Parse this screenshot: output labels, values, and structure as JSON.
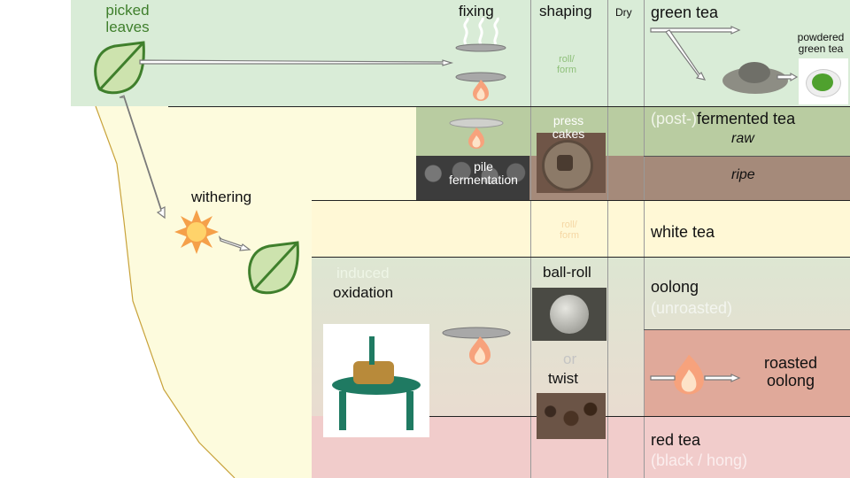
{
  "colors": {
    "green_band": "#d9ecd7",
    "cream_band": "#fdfbdd",
    "olive_band": "#b9cca1",
    "brown_band": "#a58a7a",
    "white_tea_band": "#fff8d6",
    "oolong_band": "#dde6d2",
    "roasted_band": "#e0a99a",
    "red_band": "#f1cccb",
    "leaf_fill": "#cde3ae",
    "leaf_stroke": "#3f7f2c",
    "muted_text_light": "#e8f2e0",
    "flame": "#f7a27c"
  },
  "icons": {
    "leaf": "leaf-icon",
    "sun": "sun-icon",
    "flame": "flame-icon",
    "steam": "steam-icon",
    "pan": "pan-icon",
    "arrow": "arrow-icon"
  },
  "labels": {
    "picked_leaves_1": "picked",
    "picked_leaves_2": "leaves",
    "withering": "withering",
    "fixing": "fixing",
    "shaping": "shaping",
    "dry": "Dry",
    "roll_form_green_1": "roll/",
    "roll_form_green_2": "form",
    "roll_form_white_1": "roll/",
    "roll_form_white_2": "form",
    "press_cakes_1": "press",
    "press_cakes_2": "cakes",
    "pile_fermentation_1": "pile",
    "pile_fermentation_2": "fermentation",
    "induced": "induced",
    "oxidation": "oxidation",
    "ball_roll": "ball-roll",
    "or": "or",
    "twist": "twist"
  },
  "teas": {
    "green": "green tea",
    "powdered_1": "powdered",
    "powdered_2": "green tea",
    "fermented_prefix": "(post-)",
    "fermented_main": "fermented tea",
    "raw": "raw",
    "ripe": "ripe",
    "white": "white tea",
    "oolong": "oolong",
    "unroasted": "(unroasted)",
    "roasted_1": "roasted",
    "roasted_2": "oolong",
    "red": "red tea",
    "red_alt": "(black / hong)"
  }
}
